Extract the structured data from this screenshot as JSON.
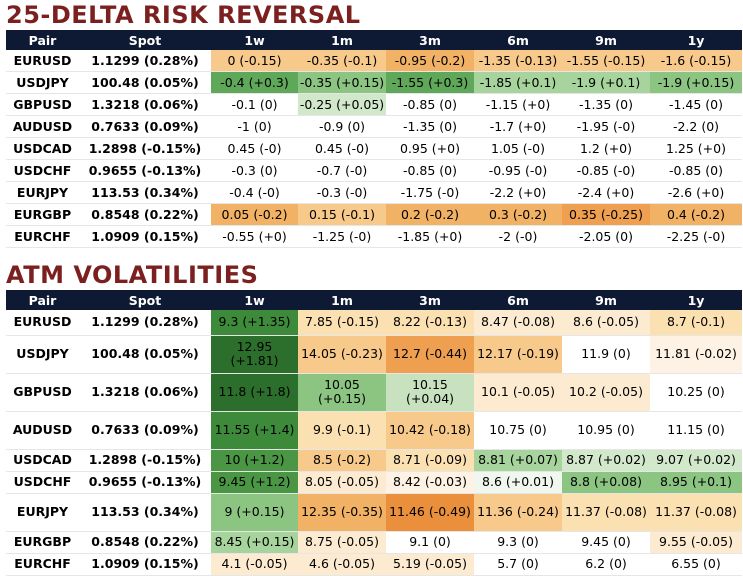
{
  "rr": {
    "title": "25-DELTA RISK REVERSAL",
    "headers": [
      "Pair",
      "Spot",
      "1w",
      "1m",
      "3m",
      "6m",
      "9m",
      "1y"
    ],
    "rows": [
      {
        "pair": "EURUSD",
        "spot": "1.1299 (0.28%)",
        "cells": [
          {
            "v": "0 (-0.15)",
            "c": "#f7c98a"
          },
          {
            "v": "-0.35 (-0.1)",
            "c": "#f7c98a"
          },
          {
            "v": "-0.95 (-0.2)",
            "c": "#f2b266"
          },
          {
            "v": "-1.35 (-0.13)",
            "c": "#f7c98a"
          },
          {
            "v": "-1.55 (-0.15)",
            "c": "#f7c98a"
          },
          {
            "v": "-1.6 (-0.15)",
            "c": "#f7c98a"
          }
        ]
      },
      {
        "pair": "USDJPY",
        "spot": "100.48 (0.05%)",
        "cells": [
          {
            "v": "-0.4 (+0.3)",
            "c": "#5fa85a"
          },
          {
            "v": "-0.35 (+0.15)",
            "c": "#8cc482"
          },
          {
            "v": "-1.55 (+0.3)",
            "c": "#5fa85a"
          },
          {
            "v": "-1.85 (+0.1)",
            "c": "#a7d39d"
          },
          {
            "v": "-1.9 (+0.1)",
            "c": "#a7d39d"
          },
          {
            "v": "-1.9 (+0.15)",
            "c": "#8cc482"
          }
        ]
      },
      {
        "pair": "GBPUSD",
        "spot": "1.3218 (0.06%)",
        "cells": [
          {
            "v": "-0.1 (0)",
            "c": "#ffffff"
          },
          {
            "v": "-0.25 (+0.05)",
            "c": "#d1e8cb"
          },
          {
            "v": "-0.85 (0)",
            "c": "#ffffff"
          },
          {
            "v": "-1.15 (+0)",
            "c": "#ffffff"
          },
          {
            "v": "-1.35 (0)",
            "c": "#ffffff"
          },
          {
            "v": "-1.45 (0)",
            "c": "#ffffff"
          }
        ]
      },
      {
        "pair": "AUDUSD",
        "spot": "0.7633 (0.09%)",
        "cells": [
          {
            "v": "-1 (0)",
            "c": "#ffffff"
          },
          {
            "v": "-0.9 (0)",
            "c": "#ffffff"
          },
          {
            "v": "-1.35 (0)",
            "c": "#ffffff"
          },
          {
            "v": "-1.7 (+0)",
            "c": "#ffffff"
          },
          {
            "v": "-1.95 (-0)",
            "c": "#ffffff"
          },
          {
            "v": "-2.2 (0)",
            "c": "#ffffff"
          }
        ]
      },
      {
        "pair": "USDCAD",
        "spot": "1.2898 (-0.15%)",
        "cells": [
          {
            "v": "0.45 (-0)",
            "c": "#ffffff"
          },
          {
            "v": "0.45 (-0)",
            "c": "#ffffff"
          },
          {
            "v": "0.95 (+0)",
            "c": "#ffffff"
          },
          {
            "v": "1.05 (-0)",
            "c": "#ffffff"
          },
          {
            "v": "1.2 (+0)",
            "c": "#ffffff"
          },
          {
            "v": "1.25 (+0)",
            "c": "#ffffff"
          }
        ]
      },
      {
        "pair": "USDCHF",
        "spot": "0.9655 (-0.13%)",
        "cells": [
          {
            "v": "-0.3 (0)",
            "c": "#ffffff"
          },
          {
            "v": "-0.7 (-0)",
            "c": "#ffffff"
          },
          {
            "v": "-0.85 (0)",
            "c": "#ffffff"
          },
          {
            "v": "-0.95 (-0)",
            "c": "#ffffff"
          },
          {
            "v": "-0.85 (-0)",
            "c": "#ffffff"
          },
          {
            "v": "-0.85 (0)",
            "c": "#ffffff"
          }
        ]
      },
      {
        "pair": "EURJPY",
        "spot": "113.53 (0.34%)",
        "cells": [
          {
            "v": "-0.4 (-0)",
            "c": "#ffffff"
          },
          {
            "v": "-0.3 (-0)",
            "c": "#ffffff"
          },
          {
            "v": "-1.75 (-0)",
            "c": "#ffffff"
          },
          {
            "v": "-2.2 (+0)",
            "c": "#ffffff"
          },
          {
            "v": "-2.4 (+0)",
            "c": "#ffffff"
          },
          {
            "v": "-2.6 (+0)",
            "c": "#ffffff"
          }
        ]
      },
      {
        "pair": "EURGBP",
        "spot": "0.8548 (0.22%)",
        "cells": [
          {
            "v": "0.05 (-0.2)",
            "c": "#f2b266"
          },
          {
            "v": "0.15 (-0.1)",
            "c": "#f7c98a"
          },
          {
            "v": "0.2 (-0.2)",
            "c": "#f2b266"
          },
          {
            "v": "0.3 (-0.2)",
            "c": "#f2b266"
          },
          {
            "v": "0.35 (-0.25)",
            "c": "#ee9f4f"
          },
          {
            "v": "0.4 (-0.2)",
            "c": "#f2b266"
          }
        ]
      },
      {
        "pair": "EURCHF",
        "spot": "1.0909 (0.15%)",
        "cells": [
          {
            "v": "-0.55 (+0)",
            "c": "#ffffff"
          },
          {
            "v": "-1.25 (-0)",
            "c": "#ffffff"
          },
          {
            "v": "-1.85 (+0)",
            "c": "#ffffff"
          },
          {
            "v": "-2 (-0)",
            "c": "#ffffff"
          },
          {
            "v": "-2.05 (0)",
            "c": "#ffffff"
          },
          {
            "v": "-2.25 (-0)",
            "c": "#ffffff"
          }
        ]
      }
    ]
  },
  "atm": {
    "title": "ATM VOLATILITIES",
    "headers": [
      "Pair",
      "Spot",
      "1w",
      "1m",
      "3m",
      "6m",
      "9m",
      "1y"
    ],
    "rows": [
      {
        "pair": "EURUSD",
        "spot": "1.1299 (0.28%)",
        "cells": [
          {
            "v": "9.3 (+1.35)",
            "c": "#3d8a3a"
          },
          {
            "v": "7.85 (-0.15)",
            "c": "#fbe0b2"
          },
          {
            "v": "8.22 (-0.13)",
            "c": "#fbe0b2"
          },
          {
            "v": "8.47 (-0.08)",
            "c": "#fcebd0"
          },
          {
            "v": "8.6 (-0.05)",
            "c": "#fcebd0"
          },
          {
            "v": "8.7 (-0.1)",
            "c": "#fbe0b2"
          }
        ]
      },
      {
        "pair": "USDJPY",
        "spot": "100.48 (0.05%)",
        "cells": [
          {
            "v": "12.95 (+1.81)",
            "c": "#2c6e2c"
          },
          {
            "v": "14.05 (-0.23)",
            "c": "#f7c98a"
          },
          {
            "v": "12.7 (-0.44)",
            "c": "#ee9f4f"
          },
          {
            "v": "12.17 (-0.19)",
            "c": "#f7c98a"
          },
          {
            "v": "11.9 (0)",
            "c": "#ffffff"
          },
          {
            "v": "11.81 (-0.02)",
            "c": "#fdf2e3"
          }
        ]
      },
      {
        "pair": "GBPUSD",
        "spot": "1.3218 (0.06%)",
        "cells": [
          {
            "v": "11.8 (+1.8)",
            "c": "#2c6e2c"
          },
          {
            "v": "10.05 (+0.15)",
            "c": "#8cc482"
          },
          {
            "v": "10.15 (+0.04)",
            "c": "#c8e2c0"
          },
          {
            "v": "10.1 (-0.05)",
            "c": "#fcebd0"
          },
          {
            "v": "10.2 (-0.05)",
            "c": "#fcebd0"
          },
          {
            "v": "10.25 (0)",
            "c": "#ffffff"
          }
        ]
      },
      {
        "pair": "AUDUSD",
        "spot": "0.7633 (0.09%)",
        "cells": [
          {
            "v": "11.55 (+1.4)",
            "c": "#3d8a3a"
          },
          {
            "v": "9.9 (-0.1)",
            "c": "#fbe0b2"
          },
          {
            "v": "10.42 (-0.18)",
            "c": "#f7c98a"
          },
          {
            "v": "10.75 (0)",
            "c": "#ffffff"
          },
          {
            "v": "10.95 (0)",
            "c": "#ffffff"
          },
          {
            "v": "11.15 (0)",
            "c": "#ffffff"
          }
        ]
      },
      {
        "pair": "USDCAD",
        "spot": "1.2898 (-0.15%)",
        "cells": [
          {
            "v": "10 (+1.2)",
            "c": "#4a9645"
          },
          {
            "v": "8.5 (-0.2)",
            "c": "#f7c98a"
          },
          {
            "v": "8.71 (-0.09)",
            "c": "#fbe0b2"
          },
          {
            "v": "8.81 (+0.07)",
            "c": "#a7d39d"
          },
          {
            "v": "8.87 (+0.02)",
            "c": "#d1e8cb"
          },
          {
            "v": "9.07 (+0.02)",
            "c": "#d1e8cb"
          }
        ]
      },
      {
        "pair": "USDCHF",
        "spot": "0.9655 (-0.13%)",
        "cells": [
          {
            "v": "9.45 (+1.2)",
            "c": "#4a9645"
          },
          {
            "v": "8.05 (-0.05)",
            "c": "#fcebd0"
          },
          {
            "v": "8.42 (-0.03)",
            "c": "#fdf2e3"
          },
          {
            "v": "8.6 (+0.01)",
            "c": "#f0f7ee"
          },
          {
            "v": "8.8 (+0.08)",
            "c": "#8cc482"
          },
          {
            "v": "8.95 (+0.1)",
            "c": "#8cc482"
          }
        ]
      },
      {
        "pair": "EURJPY",
        "spot": "113.53 (0.34%)",
        "cells": [
          {
            "v": "9 (+0.15)",
            "c": "#8cc482"
          },
          {
            "v": "12.35 (-0.35)",
            "c": "#f2b266"
          },
          {
            "v": "11.46 (-0.49)",
            "c": "#ea8f3c"
          },
          {
            "v": "11.36 (-0.24)",
            "c": "#f7c98a"
          },
          {
            "v": "11.37 (-0.08)",
            "c": "#fbe0b2"
          },
          {
            "v": "11.37 (-0.08)",
            "c": "#fbe0b2"
          }
        ]
      },
      {
        "pair": "EURGBP",
        "spot": "0.8548 (0.22%)",
        "cells": [
          {
            "v": "8.45 (+0.15)",
            "c": "#a7d39d"
          },
          {
            "v": "8.75 (-0.05)",
            "c": "#fcebd0"
          },
          {
            "v": "9.1 (0)",
            "c": "#ffffff"
          },
          {
            "v": "9.3 (0)",
            "c": "#ffffff"
          },
          {
            "v": "9.45 (0)",
            "c": "#ffffff"
          },
          {
            "v": "9.55 (-0.05)",
            "c": "#fcebd0"
          }
        ]
      },
      {
        "pair": "EURCHF",
        "spot": "1.0909 (0.15%)",
        "cells": [
          {
            "v": "4.1 (-0.05)",
            "c": "#fcebd0"
          },
          {
            "v": "4.6 (-0.05)",
            "c": "#fcebd0"
          },
          {
            "v": "5.19 (-0.05)",
            "c": "#fcebd0"
          },
          {
            "v": "5.7 (0)",
            "c": "#ffffff"
          },
          {
            "v": "6.2 (0)",
            "c": "#ffffff"
          },
          {
            "v": "6.55 (0)",
            "c": "#ffffff"
          }
        ]
      }
    ]
  }
}
